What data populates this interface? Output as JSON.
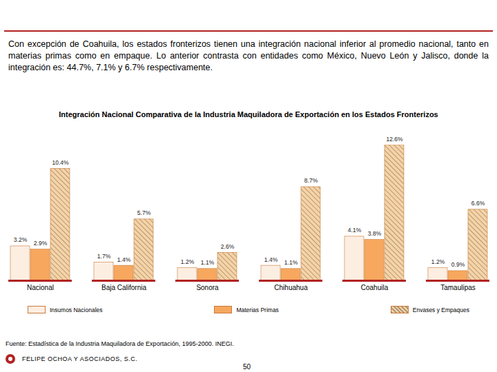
{
  "text": "Con excepción de Coahuila, los estados fronterizos tienen una integración nacional inferior al promedio nacional, tanto en materias primas como en empaque. Lo anterior contrasta con entidades como México, Nuevo León y Jalisco, donde la integración es: 44.7%, 7.1% y 6.7% respectivamente.",
  "chart_data": {
    "type": "bar",
    "title": "Integración Nacional Comparativa de la Industria Maquiladora de Exportación en los Estados Fronterizos",
    "categories": [
      "Nacional",
      "Baja California",
      "Sonora",
      "Chihuahua",
      "Coahuila",
      "Tamaulipas"
    ],
    "series": [
      {
        "name": "Insumos Nacionales",
        "color": "#fdeee2",
        "values": [
          3.2,
          1.7,
          1.2,
          1.4,
          4.1,
          1.2
        ],
        "value_labels": [
          "3.2%",
          "1.7%",
          "1.2%",
          "1.4%",
          "4.1%",
          "1.2%"
        ]
      },
      {
        "name": "Materias Primas",
        "color": "#f7a85e",
        "values": [
          2.9,
          1.4,
          1.1,
          1.1,
          3.8,
          0.9
        ],
        "value_labels": [
          "2.9%",
          "1.4%",
          "1.1%",
          "1.1%",
          "3.8%",
          "0.9%"
        ]
      },
      {
        "name": "Envases y Empaques",
        "color": "#f6d3a6",
        "values": [
          10.4,
          5.7,
          2.6,
          8.7,
          12.6,
          6.6
        ],
        "value_labels": [
          "10.4%",
          "5.7%",
          "2.6%",
          "8.7%",
          "12.6%",
          "6.6%"
        ]
      }
    ],
    "data_labels": true,
    "tick_labels": "x"
  },
  "source": "Fuente: Estadística de la Industria Maquiladora de Exportación, 1995-2000. INEGI.",
  "footer": "FELIPE OCHOA Y ASOCIADOS, S.C.",
  "page": 50
}
